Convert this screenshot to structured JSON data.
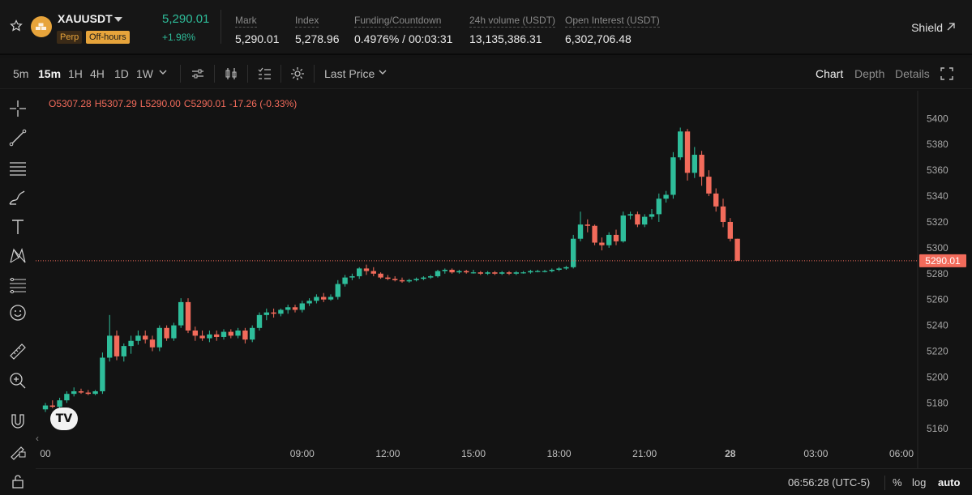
{
  "header": {
    "symbol": "XAUUSDT",
    "badge_perp": "Perp",
    "badge_off_hours": "Off-hours",
    "last_price": "5,290.01",
    "change_pct": "+1.98%",
    "stats": [
      {
        "label": "Mark",
        "value": "5,290.01"
      },
      {
        "label": "Index",
        "value": "5,278.96"
      },
      {
        "label": "Funding/Countdown",
        "value": "0.4976% / 00:03:31"
      },
      {
        "label": "24h volume (USDT)",
        "value": "13,135,386.31"
      },
      {
        "label": "Open Interest (USDT)",
        "value": "6,302,706.48"
      }
    ],
    "shield_label": "Shield"
  },
  "toolbar": {
    "timeframes": [
      "5m",
      "15m",
      "1H",
      "4H",
      "1D",
      "1W"
    ],
    "active_timeframe": "15m",
    "price_type": "Last Price",
    "view_tabs": [
      "Chart",
      "Depth",
      "Details"
    ],
    "active_view": "Chart"
  },
  "ohlc": {
    "open": "O5307.28",
    "high": "H5307.29",
    "low": "L5290.00",
    "close": "C5290.01",
    "change": "-17.26 (-0.33%)"
  },
  "bottom": {
    "clock": "06:56:28 (UTC-5)",
    "percent_label": "%",
    "log_label": "log",
    "auto_label": "auto"
  },
  "colors": {
    "up": "#2ebd9a",
    "down": "#f26b5b",
    "accent": "#e7a43b",
    "background": "#131313"
  },
  "chart_data": {
    "type": "candlestick",
    "symbol": "XAUUSDT",
    "interval": "15m",
    "current_price": 5290.01,
    "current_price_label": "5290.01",
    "ylim": [
      5152,
      5414
    ],
    "y_ticks": [
      5160,
      5180,
      5200,
      5220,
      5240,
      5260,
      5280,
      5300,
      5320,
      5340,
      5360,
      5380,
      5400
    ],
    "x_labels": [
      "00",
      "09:00",
      "12:00",
      "15:00",
      "18:00",
      "21:00",
      "28",
      "03:00",
      "06:00",
      "09:00"
    ],
    "x_label_bars": [
      0,
      36,
      48,
      60,
      72,
      84,
      96,
      108,
      120,
      132
    ],
    "candles": [
      {
        "o": 5175,
        "h": 5180,
        "l": 5173,
        "c": 5178
      },
      {
        "o": 5178,
        "h": 5182,
        "l": 5176,
        "c": 5177
      },
      {
        "o": 5177,
        "h": 5184,
        "l": 5175,
        "c": 5182
      },
      {
        "o": 5182,
        "h": 5189,
        "l": 5180,
        "c": 5187
      },
      {
        "o": 5187,
        "h": 5192,
        "l": 5185,
        "c": 5189
      },
      {
        "o": 5189,
        "h": 5191,
        "l": 5187,
        "c": 5188
      },
      {
        "o": 5188,
        "h": 5190,
        "l": 5186,
        "c": 5187
      },
      {
        "o": 5187,
        "h": 5190,
        "l": 5186,
        "c": 5189
      },
      {
        "o": 5189,
        "h": 5219,
        "l": 5187,
        "c": 5215
      },
      {
        "o": 5215,
        "h": 5248,
        "l": 5212,
        "c": 5232
      },
      {
        "o": 5232,
        "h": 5236,
        "l": 5213,
        "c": 5216
      },
      {
        "o": 5216,
        "h": 5226,
        "l": 5212,
        "c": 5224
      },
      {
        "o": 5224,
        "h": 5232,
        "l": 5218,
        "c": 5228
      },
      {
        "o": 5228,
        "h": 5236,
        "l": 5225,
        "c": 5232
      },
      {
        "o": 5232,
        "h": 5236,
        "l": 5226,
        "c": 5229
      },
      {
        "o": 5229,
        "h": 5232,
        "l": 5220,
        "c": 5223
      },
      {
        "o": 5223,
        "h": 5240,
        "l": 5220,
        "c": 5238
      },
      {
        "o": 5238,
        "h": 5240,
        "l": 5228,
        "c": 5230
      },
      {
        "o": 5230,
        "h": 5242,
        "l": 5228,
        "c": 5240
      },
      {
        "o": 5240,
        "h": 5261,
        "l": 5238,
        "c": 5258
      },
      {
        "o": 5258,
        "h": 5261,
        "l": 5234,
        "c": 5236
      },
      {
        "o": 5236,
        "h": 5239,
        "l": 5228,
        "c": 5232
      },
      {
        "o": 5232,
        "h": 5236,
        "l": 5228,
        "c": 5230
      },
      {
        "o": 5230,
        "h": 5236,
        "l": 5227,
        "c": 5233
      },
      {
        "o": 5233,
        "h": 5236,
        "l": 5228,
        "c": 5231
      },
      {
        "o": 5231,
        "h": 5237,
        "l": 5229,
        "c": 5235
      },
      {
        "o": 5235,
        "h": 5237,
        "l": 5230,
        "c": 5232
      },
      {
        "o": 5232,
        "h": 5238,
        "l": 5230,
        "c": 5236
      },
      {
        "o": 5236,
        "h": 5238,
        "l": 5226,
        "c": 5229
      },
      {
        "o": 5229,
        "h": 5240,
        "l": 5227,
        "c": 5238
      },
      {
        "o": 5238,
        "h": 5250,
        "l": 5236,
        "c": 5248
      },
      {
        "o": 5248,
        "h": 5253,
        "l": 5244,
        "c": 5250
      },
      {
        "o": 5250,
        "h": 5253,
        "l": 5246,
        "c": 5249
      },
      {
        "o": 5249,
        "h": 5253,
        "l": 5247,
        "c": 5252
      },
      {
        "o": 5252,
        "h": 5256,
        "l": 5249,
        "c": 5254
      },
      {
        "o": 5254,
        "h": 5256,
        "l": 5250,
        "c": 5252
      },
      {
        "o": 5252,
        "h": 5259,
        "l": 5250,
        "c": 5257
      },
      {
        "o": 5257,
        "h": 5261,
        "l": 5255,
        "c": 5259
      },
      {
        "o": 5259,
        "h": 5264,
        "l": 5257,
        "c": 5262
      },
      {
        "o": 5262,
        "h": 5265,
        "l": 5258,
        "c": 5260
      },
      {
        "o": 5260,
        "h": 5264,
        "l": 5259,
        "c": 5262
      },
      {
        "o": 5262,
        "h": 5275,
        "l": 5260,
        "c": 5272
      },
      {
        "o": 5272,
        "h": 5279,
        "l": 5270,
        "c": 5277
      },
      {
        "o": 5277,
        "h": 5280,
        "l": 5275,
        "c": 5278
      },
      {
        "o": 5278,
        "h": 5285,
        "l": 5276,
        "c": 5284
      },
      {
        "o": 5284,
        "h": 5287,
        "l": 5279,
        "c": 5282
      },
      {
        "o": 5282,
        "h": 5285,
        "l": 5278,
        "c": 5280
      },
      {
        "o": 5280,
        "h": 5281,
        "l": 5276,
        "c": 5277
      },
      {
        "o": 5277,
        "h": 5279,
        "l": 5275,
        "c": 5276
      },
      {
        "o": 5276,
        "h": 5278,
        "l": 5274,
        "c": 5275
      },
      {
        "o": 5275,
        "h": 5277,
        "l": 5273,
        "c": 5274
      },
      {
        "o": 5274,
        "h": 5276,
        "l": 5273,
        "c": 5275
      },
      {
        "o": 5275,
        "h": 5277,
        "l": 5274,
        "c": 5276
      },
      {
        "o": 5276,
        "h": 5278,
        "l": 5275,
        "c": 5277
      },
      {
        "o": 5277,
        "h": 5279,
        "l": 5276,
        "c": 5278
      },
      {
        "o": 5278,
        "h": 5283,
        "l": 5277,
        "c": 5282
      },
      {
        "o": 5282,
        "h": 5284,
        "l": 5280,
        "c": 5283
      },
      {
        "o": 5283,
        "h": 5284,
        "l": 5280,
        "c": 5281
      },
      {
        "o": 5281,
        "h": 5283,
        "l": 5280,
        "c": 5282
      },
      {
        "o": 5282,
        "h": 5283,
        "l": 5280,
        "c": 5281
      },
      {
        "o": 5281,
        "h": 5283,
        "l": 5280,
        "c": 5281
      },
      {
        "o": 5281,
        "h": 5282,
        "l": 5279,
        "c": 5280
      },
      {
        "o": 5280,
        "h": 5282,
        "l": 5279,
        "c": 5281
      },
      {
        "o": 5281,
        "h": 5282,
        "l": 5279,
        "c": 5280
      },
      {
        "o": 5280,
        "h": 5282,
        "l": 5279,
        "c": 5281
      },
      {
        "o": 5281,
        "h": 5282,
        "l": 5279,
        "c": 5280
      },
      {
        "o": 5280,
        "h": 5282,
        "l": 5279,
        "c": 5281
      },
      {
        "o": 5281,
        "h": 5282,
        "l": 5280,
        "c": 5281
      },
      {
        "o": 5281,
        "h": 5283,
        "l": 5280,
        "c": 5282
      },
      {
        "o": 5282,
        "h": 5283,
        "l": 5281,
        "c": 5282
      },
      {
        "o": 5282,
        "h": 5283,
        "l": 5281,
        "c": 5282
      },
      {
        "o": 5282,
        "h": 5284,
        "l": 5281,
        "c": 5283
      },
      {
        "o": 5283,
        "h": 5285,
        "l": 5282,
        "c": 5284
      },
      {
        "o": 5284,
        "h": 5286,
        "l": 5283,
        "c": 5285
      },
      {
        "o": 5285,
        "h": 5310,
        "l": 5284,
        "c": 5307
      },
      {
        "o": 5307,
        "h": 5328,
        "l": 5305,
        "c": 5318
      },
      {
        "o": 5318,
        "h": 5322,
        "l": 5312,
        "c": 5317
      },
      {
        "o": 5317,
        "h": 5318,
        "l": 5302,
        "c": 5304
      },
      {
        "o": 5304,
        "h": 5308,
        "l": 5298,
        "c": 5302
      },
      {
        "o": 5302,
        "h": 5312,
        "l": 5300,
        "c": 5310
      },
      {
        "o": 5310,
        "h": 5314,
        "l": 5302,
        "c": 5305
      },
      {
        "o": 5305,
        "h": 5328,
        "l": 5304,
        "c": 5325
      },
      {
        "o": 5325,
        "h": 5328,
        "l": 5322,
        "c": 5326
      },
      {
        "o": 5326,
        "h": 5328,
        "l": 5316,
        "c": 5318
      },
      {
        "o": 5318,
        "h": 5326,
        "l": 5316,
        "c": 5324
      },
      {
        "o": 5324,
        "h": 5330,
        "l": 5322,
        "c": 5326
      },
      {
        "o": 5326,
        "h": 5342,
        "l": 5320,
        "c": 5338
      },
      {
        "o": 5338,
        "h": 5344,
        "l": 5335,
        "c": 5341
      },
      {
        "o": 5341,
        "h": 5374,
        "l": 5338,
        "c": 5370
      },
      {
        "o": 5370,
        "h": 5393,
        "l": 5368,
        "c": 5390
      },
      {
        "o": 5390,
        "h": 5392,
        "l": 5352,
        "c": 5358
      },
      {
        "o": 5358,
        "h": 5378,
        "l": 5354,
        "c": 5372
      },
      {
        "o": 5372,
        "h": 5375,
        "l": 5348,
        "c": 5355
      },
      {
        "o": 5355,
        "h": 5360,
        "l": 5340,
        "c": 5342
      },
      {
        "o": 5342,
        "h": 5346,
        "l": 5328,
        "c": 5332
      },
      {
        "o": 5332,
        "h": 5338,
        "l": 5316,
        "c": 5320
      },
      {
        "o": 5320,
        "h": 5323,
        "l": 5305,
        "c": 5307
      },
      {
        "o": 5307,
        "h": 5307,
        "l": 5290,
        "c": 5290
      }
    ]
  }
}
